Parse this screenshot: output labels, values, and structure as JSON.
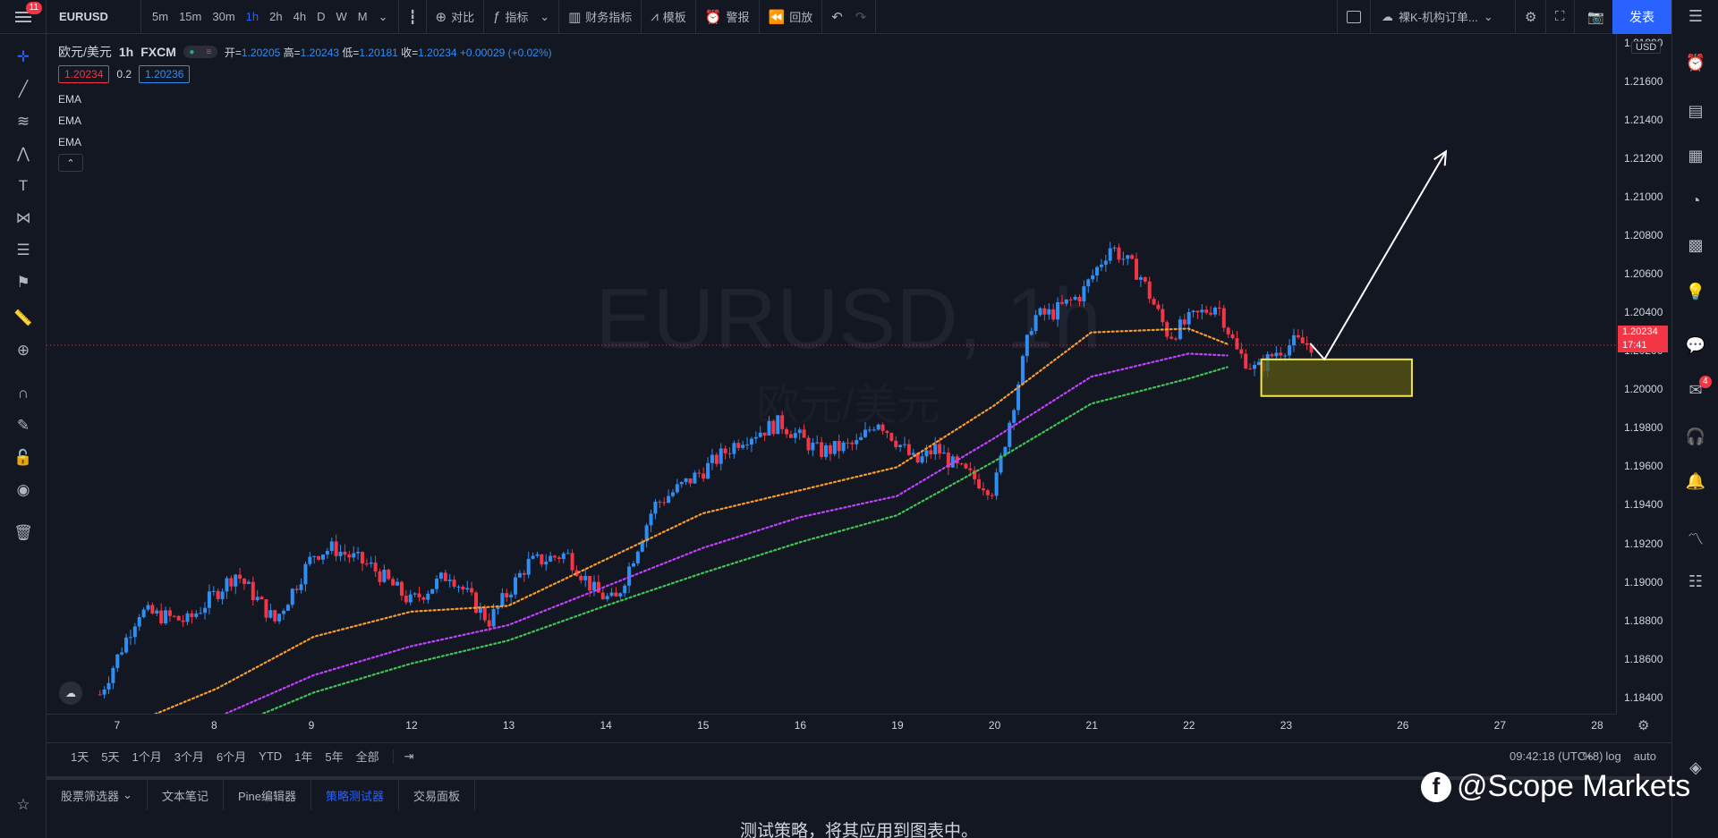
{
  "topbar": {
    "menu_badge": "11",
    "symbol": "EURUSD",
    "intervals": [
      "5m",
      "15m",
      "30m",
      "1h",
      "2h",
      "4h",
      "D",
      "W",
      "M"
    ],
    "active_interval": "1h",
    "compare": "对比",
    "indicators": "指标",
    "financials": "财务指标",
    "templates": "模板",
    "alerts": "警报",
    "replay": "回放",
    "layout_name": "裸K-机构订单...",
    "publish": "发表"
  },
  "legend": {
    "title": "欧元/美元",
    "timeframe": "1h",
    "source": "FXCM",
    "open_label": "开=",
    "open": "1.20205",
    "high_label": "高=",
    "high": "1.20243",
    "low_label": "低=",
    "low": "1.20181",
    "close_label": "收=",
    "close": "1.20234",
    "change": "+0.00029 (+0.02%)",
    "bid": "1.20234",
    "spread": "0.2",
    "ask": "1.20236",
    "ema_labels": [
      "EMA",
      "EMA",
      "EMA"
    ]
  },
  "chart_watermark": {
    "symbol_line": "EURUSD, 1h",
    "name_line": "欧元/美元"
  },
  "chart_data": {
    "type": "line",
    "title": "",
    "y_ticks": [
      "1.21800",
      "1.21600",
      "1.21400",
      "1.21200",
      "1.21000",
      "1.20800",
      "1.20600",
      "1.20400",
      "1.20200",
      "1.20000",
      "1.19800",
      "1.19600",
      "1.19400",
      "1.19200",
      "1.19000",
      "1.18800",
      "1.18600",
      "1.18400"
    ],
    "x_ticks": [
      "7",
      "8",
      "9",
      "12",
      "13",
      "14",
      "15",
      "16",
      "19",
      "20",
      "21",
      "22",
      "23",
      "26",
      "27",
      "28"
    ],
    "ylim": [
      1.1832,
      1.2185
    ],
    "currency": "USD",
    "current_price": "1.20234",
    "countdown": "17:41",
    "series": [
      {
        "color": "#f89b2d",
        "x": [
          0.9,
          2,
          3,
          4,
          5,
          6,
          7,
          8,
          9,
          10,
          11,
          12,
          12.4
        ],
        "values": [
          1.1822,
          1.1845,
          1.1872,
          1.1885,
          1.1888,
          1.1912,
          1.1936,
          1.1948,
          1.196,
          1.1992,
          1.203,
          1.2032,
          1.2024
        ]
      },
      {
        "color": "#c240ff",
        "x": [
          0.9,
          2,
          3,
          4,
          5,
          6,
          7,
          8,
          9,
          10,
          11,
          12,
          12.4
        ],
        "values": [
          1.1808,
          1.183,
          1.1852,
          1.1867,
          1.1878,
          1.1898,
          1.1918,
          1.1934,
          1.1945,
          1.1975,
          1.2007,
          1.2019,
          1.2018
        ]
      },
      {
        "color": "#3fc553",
        "x": [
          0.9,
          2,
          3,
          4,
          5,
          6,
          7,
          8,
          9,
          10,
          11,
          12,
          12.4
        ],
        "values": [
          1.18,
          1.1822,
          1.1843,
          1.1858,
          1.187,
          1.1888,
          1.1905,
          1.1921,
          1.1935,
          1.1963,
          1.1993,
          1.2006,
          1.2012
        ]
      }
    ],
    "price_path": {
      "x": [
        0.8,
        1.2,
        1.7,
        2.2,
        2.6,
        3.0,
        3.2,
        3.6,
        4.0,
        4.4,
        4.8,
        5.2,
        5.6,
        5.9,
        6.1,
        6.5,
        7.0,
        7.4,
        7.8,
        8.2,
        8.6,
        8.8,
        9.2,
        9.4,
        9.6,
        10.0,
        10.4,
        10.6,
        10.9,
        11.2,
        11.5,
        11.8,
        12.0,
        12.3,
        12.5,
        12.7,
        12.9,
        13.1,
        13.3
      ],
      "values": [
        1.1842,
        1.1885,
        1.188,
        1.1905,
        1.188,
        1.1915,
        1.1918,
        1.1908,
        1.189,
        1.1905,
        1.188,
        1.191,
        1.1915,
        1.1895,
        1.189,
        1.194,
        1.1958,
        1.1975,
        1.1983,
        1.1968,
        1.1972,
        1.1985,
        1.1962,
        1.197,
        1.196,
        1.1948,
        1.2038,
        1.204,
        1.205,
        1.2075,
        1.206,
        1.2028,
        1.2036,
        1.2045,
        1.202,
        1.201,
        1.202,
        1.2025,
        1.2023
      ]
    },
    "zone": {
      "x0": 12.75,
      "x1": 14.3,
      "y0": 1.1997,
      "y1": 1.2016
    },
    "arrow": {
      "x0": 13.4,
      "y0": 1.2016,
      "x1": 14.65,
      "y1": 1.2124
    },
    "xlim": [
      0.25,
      16.4
    ]
  },
  "rangebar": {
    "ranges": [
      "1天",
      "5天",
      "1个月",
      "3个月",
      "6个月",
      "YTD",
      "1年",
      "5年",
      "全部"
    ],
    "time": "09:42:18 (UTC+8)",
    "right": [
      "%",
      "log",
      "auto"
    ]
  },
  "bottom": {
    "tabs": [
      "股票筛选器",
      "文本笔记",
      "Pine编辑器",
      "策略测试器",
      "交易面板"
    ],
    "active_tab": "策略测试器",
    "message": "测试策略，将其应用到图表中。",
    "brand": "@Scope Markets"
  },
  "rightbar": {
    "badge": "4"
  },
  "colors": {
    "bg": "#131722",
    "up": "#2f8ef4",
    "down": "#f23645",
    "accent": "#2962ff",
    "zone_fill": "#5a5a12",
    "zone_border": "#f5e642"
  }
}
